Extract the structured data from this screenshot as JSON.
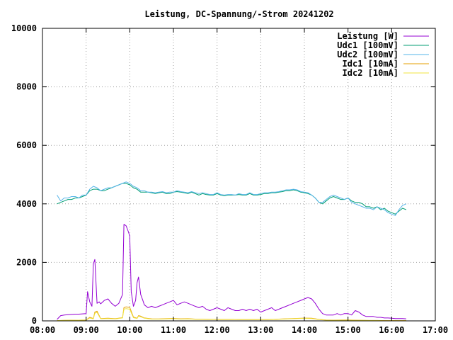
{
  "chart_data": {
    "type": "line",
    "title": "Leistung, DC-Spannung/-Strom 20241202",
    "xlabel": "",
    "ylabel": "",
    "x_tick_labels": [
      "08:00",
      "09:00",
      "10:00",
      "11:00",
      "12:00",
      "13:00",
      "14:00",
      "15:00",
      "16:00",
      "17:00"
    ],
    "y_tick_labels": [
      "0",
      "2000",
      "4000",
      "6000",
      "8000",
      "10000"
    ],
    "xlim": [
      "08:00",
      "17:00"
    ],
    "ylim": [
      0,
      10000
    ],
    "grid": true,
    "legend_position": "top-right",
    "series": [
      {
        "name": "Leistung [W]",
        "color": "#9400d3",
        "x": [
          "08:20",
          "08:25",
          "08:30",
          "08:35",
          "08:40",
          "08:45",
          "08:50",
          "08:55",
          "09:00",
          "09:02",
          "09:05",
          "09:08",
          "09:10",
          "09:12",
          "09:15",
          "09:18",
          "09:20",
          "09:25",
          "09:30",
          "09:35",
          "09:40",
          "09:45",
          "09:50",
          "09:52",
          "09:55",
          "09:58",
          "10:00",
          "10:02",
          "10:05",
          "10:08",
          "10:10",
          "10:12",
          "10:15",
          "10:18",
          "10:20",
          "10:25",
          "10:30",
          "10:35",
          "10:40",
          "10:45",
          "10:50",
          "10:55",
          "11:00",
          "11:05",
          "11:10",
          "11:15",
          "11:20",
          "11:25",
          "11:30",
          "11:35",
          "11:40",
          "11:45",
          "11:50",
          "11:55",
          "12:00",
          "12:05",
          "12:10",
          "12:15",
          "12:20",
          "12:25",
          "12:30",
          "12:35",
          "12:40",
          "12:45",
          "12:50",
          "12:55",
          "13:00",
          "13:05",
          "13:10",
          "13:15",
          "13:20",
          "13:25",
          "13:30",
          "13:35",
          "13:40",
          "13:45",
          "13:50",
          "13:55",
          "14:00",
          "14:05",
          "14:10",
          "14:15",
          "14:20",
          "14:25",
          "14:30",
          "14:35",
          "14:40",
          "14:45",
          "14:50",
          "14:55",
          "15:00",
          "15:05",
          "15:10",
          "15:15",
          "15:20",
          "15:25",
          "15:30",
          "15:35",
          "15:40",
          "15:45",
          "15:50",
          "15:55",
          "16:00",
          "16:05",
          "16:10",
          "16:15",
          "16:20"
        ],
        "values": [
          50,
          180,
          200,
          210,
          220,
          230,
          230,
          240,
          250,
          1000,
          650,
          500,
          1950,
          2100,
          600,
          650,
          580,
          700,
          750,
          600,
          500,
          600,
          900,
          3300,
          3250,
          3050,
          2900,
          1000,
          500,
          700,
          1300,
          1500,
          900,
          700,
          550,
          450,
          500,
          450,
          500,
          550,
          600,
          650,
          700,
          550,
          600,
          650,
          600,
          550,
          500,
          450,
          500,
          400,
          350,
          400,
          450,
          400,
          350,
          450,
          400,
          350,
          350,
          400,
          350,
          400,
          350,
          400,
          300,
          350,
          400,
          450,
          350,
          400,
          450,
          500,
          550,
          600,
          650,
          700,
          750,
          800,
          750,
          600,
          400,
          250,
          200,
          200,
          200,
          250,
          200,
          250,
          250,
          200,
          350,
          300,
          200,
          150,
          150,
          150,
          120,
          120,
          100,
          100,
          90,
          80,
          80,
          80,
          70
        ]
      },
      {
        "name": "Udc1 [100mV]",
        "color": "#009e73",
        "x": [
          "08:20",
          "08:25",
          "08:30",
          "08:35",
          "08:40",
          "08:45",
          "08:50",
          "08:55",
          "09:00",
          "09:05",
          "09:10",
          "09:15",
          "09:20",
          "09:25",
          "09:30",
          "09:35",
          "09:40",
          "09:45",
          "09:50",
          "09:55",
          "10:00",
          "10:05",
          "10:10",
          "10:15",
          "10:20",
          "10:25",
          "10:30",
          "10:35",
          "10:40",
          "10:45",
          "10:50",
          "10:55",
          "11:00",
          "11:05",
          "11:10",
          "11:15",
          "11:20",
          "11:25",
          "11:30",
          "11:35",
          "11:40",
          "11:45",
          "11:50",
          "11:55",
          "12:00",
          "12:05",
          "12:10",
          "12:15",
          "12:20",
          "12:25",
          "12:30",
          "12:35",
          "12:40",
          "12:45",
          "12:50",
          "12:55",
          "13:00",
          "13:05",
          "13:10",
          "13:15",
          "13:20",
          "13:25",
          "13:30",
          "13:35",
          "13:40",
          "13:45",
          "13:50",
          "13:55",
          "14:00",
          "14:05",
          "14:10",
          "14:15",
          "14:20",
          "14:25",
          "14:30",
          "14:35",
          "14:40",
          "14:45",
          "14:50",
          "14:55",
          "15:00",
          "15:05",
          "15:10",
          "15:15",
          "15:20",
          "15:25",
          "15:30",
          "15:35",
          "15:40",
          "15:45",
          "15:50",
          "15:55",
          "16:00",
          "16:05",
          "16:10",
          "16:15",
          "16:20"
        ],
        "values": [
          4000,
          4050,
          4100,
          4150,
          4150,
          4200,
          4200,
          4250,
          4300,
          4450,
          4500,
          4500,
          4450,
          4450,
          4500,
          4550,
          4600,
          4650,
          4700,
          4700,
          4650,
          4550,
          4500,
          4400,
          4400,
          4400,
          4380,
          4350,
          4380,
          4400,
          4350,
          4350,
          4400,
          4420,
          4400,
          4380,
          4350,
          4400,
          4350,
          4300,
          4350,
          4320,
          4300,
          4300,
          4350,
          4300,
          4280,
          4300,
          4300,
          4300,
          4320,
          4300,
          4300,
          4350,
          4300,
          4300,
          4320,
          4350,
          4350,
          4380,
          4380,
          4400,
          4420,
          4450,
          4450,
          4480,
          4450,
          4400,
          4380,
          4350,
          4300,
          4200,
          4050,
          4000,
          4100,
          4200,
          4250,
          4200,
          4150,
          4150,
          4200,
          4100,
          4050,
          4050,
          4000,
          3900,
          3900,
          3850,
          3900,
          3800,
          3850,
          3750,
          3700,
          3650,
          3750,
          3850,
          3800
        ]
      },
      {
        "name": "Udc2 [100mV]",
        "color": "#56b4e9",
        "x": [
          "08:20",
          "08:25",
          "08:30",
          "08:35",
          "08:40",
          "08:45",
          "08:50",
          "08:55",
          "09:00",
          "09:05",
          "09:10",
          "09:15",
          "09:20",
          "09:25",
          "09:30",
          "09:35",
          "09:40",
          "09:45",
          "09:50",
          "09:55",
          "10:00",
          "10:05",
          "10:10",
          "10:15",
          "10:20",
          "10:25",
          "10:30",
          "10:35",
          "10:40",
          "10:45",
          "10:50",
          "10:55",
          "11:00",
          "11:05",
          "11:10",
          "11:15",
          "11:20",
          "11:25",
          "11:30",
          "11:35",
          "11:40",
          "11:45",
          "11:50",
          "11:55",
          "12:00",
          "12:05",
          "12:10",
          "12:15",
          "12:20",
          "12:25",
          "12:30",
          "12:35",
          "12:40",
          "12:45",
          "12:50",
          "12:55",
          "13:00",
          "13:05",
          "13:10",
          "13:15",
          "13:20",
          "13:25",
          "13:30",
          "13:35",
          "13:40",
          "13:45",
          "13:50",
          "13:55",
          "14:00",
          "14:05",
          "14:10",
          "14:15",
          "14:20",
          "14:25",
          "14:30",
          "14:35",
          "14:40",
          "14:45",
          "14:50",
          "14:55",
          "15:00",
          "15:05",
          "15:10",
          "15:15",
          "15:20",
          "15:25",
          "15:30",
          "15:35",
          "15:40",
          "15:45",
          "15:50",
          "15:55",
          "16:00",
          "16:05",
          "16:10",
          "16:15",
          "16:20"
        ],
        "values": [
          4300,
          4100,
          4200,
          4200,
          4250,
          4250,
          4200,
          4300,
          4300,
          4500,
          4600,
          4550,
          4450,
          4500,
          4550,
          4550,
          4600,
          4650,
          4700,
          4750,
          4700,
          4600,
          4550,
          4450,
          4450,
          4400,
          4400,
          4380,
          4400,
          4420,
          4380,
          4400,
          4400,
          4450,
          4420,
          4400,
          4380,
          4420,
          4380,
          4350,
          4380,
          4350,
          4320,
          4320,
          4380,
          4320,
          4300,
          4320,
          4320,
          4300,
          4350,
          4320,
          4320,
          4380,
          4320,
          4320,
          4350,
          4380,
          4380,
          4400,
          4400,
          4420,
          4450,
          4480,
          4480,
          4500,
          4480,
          4420,
          4400,
          4380,
          4300,
          4200,
          4050,
          4050,
          4150,
          4250,
          4300,
          4250,
          4200,
          4150,
          4200,
          4050,
          4000,
          3950,
          3900,
          3850,
          3850,
          3800,
          3900,
          3850,
          3800,
          3700,
          3650,
          3600,
          3800,
          3950,
          4000
        ]
      },
      {
        "name": "Idc1 [10mA]",
        "color": "#e69f00",
        "x": [
          "08:20",
          "08:30",
          "08:40",
          "08:50",
          "09:00",
          "09:05",
          "09:10",
          "09:12",
          "09:15",
          "09:20",
          "09:30",
          "09:40",
          "09:50",
          "09:52",
          "09:55",
          "10:00",
          "10:05",
          "10:10",
          "10:12",
          "10:15",
          "10:20",
          "10:30",
          "10:40",
          "10:50",
          "11:00",
          "11:10",
          "11:20",
          "11:30",
          "11:40",
          "11:50",
          "12:00",
          "12:10",
          "12:20",
          "12:30",
          "12:40",
          "12:50",
          "13:00",
          "13:10",
          "13:20",
          "13:30",
          "13:40",
          "13:50",
          "14:00",
          "14:10",
          "14:20",
          "14:30",
          "14:40",
          "14:50",
          "15:00",
          "15:10",
          "15:20",
          "15:30",
          "15:40",
          "15:50",
          "16:00",
          "16:10",
          "16:20"
        ],
        "values": [
          10,
          20,
          25,
          25,
          30,
          120,
          80,
          300,
          330,
          80,
          90,
          75,
          110,
          450,
          480,
          460,
          130,
          90,
          180,
          160,
          100,
          70,
          65,
          75,
          85,
          70,
          75,
          60,
          60,
          55,
          50,
          50,
          50,
          45,
          45,
          45,
          45,
          45,
          55,
          65,
          75,
          85,
          95,
          90,
          50,
          30,
          25,
          30,
          35,
          25,
          20,
          15,
          15,
          10,
          10,
          10,
          10
        ]
      },
      {
        "name": "Idc2 [10mA]",
        "color": "#f0e442",
        "x": [
          "08:20",
          "08:30",
          "08:40",
          "08:50",
          "09:00",
          "09:05",
          "09:10",
          "09:12",
          "09:15",
          "09:20",
          "09:30",
          "09:40",
          "09:50",
          "09:52",
          "09:55",
          "10:00",
          "10:05",
          "10:10",
          "10:12",
          "10:15",
          "10:20",
          "10:30",
          "10:40",
          "10:50",
          "11:00",
          "11:10",
          "11:20",
          "11:30",
          "11:40",
          "11:50",
          "12:00",
          "12:10",
          "12:20",
          "12:30",
          "12:40",
          "12:50",
          "13:00",
          "13:10",
          "13:20",
          "13:30",
          "13:40",
          "13:50",
          "14:00",
          "14:10",
          "14:20",
          "14:30",
          "14:40",
          "14:50",
          "15:00",
          "15:10",
          "15:20",
          "15:30",
          "15:40",
          "15:50",
          "16:00",
          "16:10",
          "16:20"
        ],
        "values": [
          10,
          20,
          22,
          24,
          28,
          100,
          70,
          260,
          290,
          70,
          80,
          65,
          100,
          400,
          420,
          400,
          110,
          80,
          160,
          140,
          90,
          60,
          60,
          65,
          75,
          60,
          65,
          55,
          55,
          50,
          45,
          45,
          45,
          40,
          40,
          40,
          40,
          40,
          50,
          60,
          70,
          80,
          85,
          80,
          45,
          25,
          20,
          25,
          30,
          20,
          18,
          12,
          12,
          8,
          8,
          8,
          8
        ]
      }
    ]
  }
}
